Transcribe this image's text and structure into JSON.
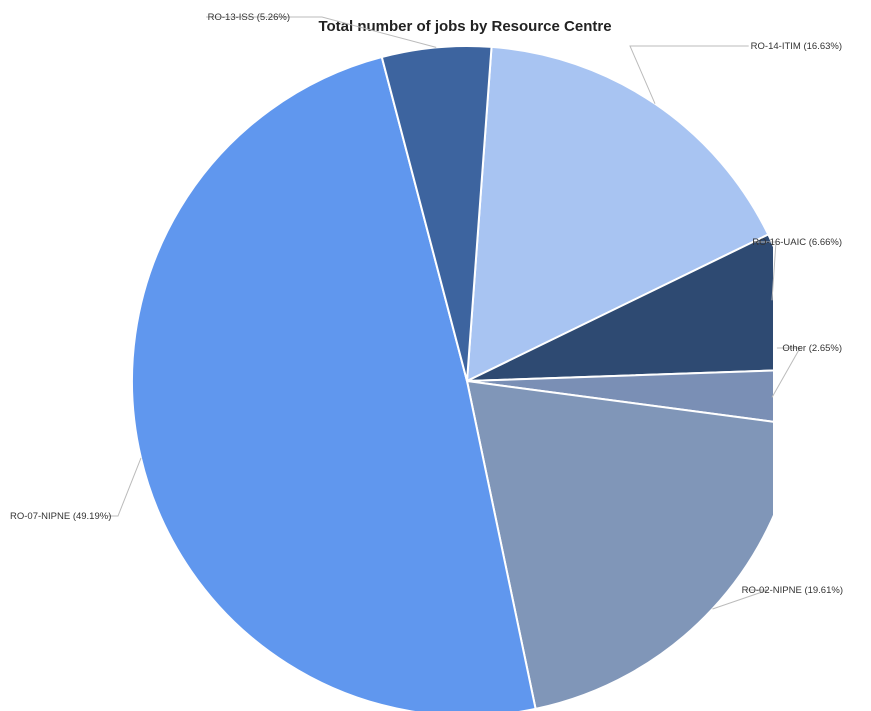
{
  "chart_data": {
    "type": "pie",
    "title": "Total number of jobs  by Resource Centre",
    "slices": [
      {
        "label": "RO-14-ITIM (16.63%)",
        "name": "RO-14-ITIM",
        "percent": 16.63,
        "color": "#A8C4F2"
      },
      {
        "label": "RO-16-UAIC (6.66%)",
        "name": "RO-16-UAIC",
        "percent": 6.66,
        "color": "#2E4A72"
      },
      {
        "label": "Other (2.65%)",
        "name": "Other",
        "percent": 2.65,
        "color": "#7A8FB5"
      },
      {
        "label": "RO-02-NIPNE (19.61%)",
        "name": "RO-02-NIPNE",
        "percent": 19.61,
        "color": "#8096B8"
      },
      {
        "label": "RO-07-NIPNE (49.19%)",
        "name": "RO-07-NIPNE",
        "percent": 49.19,
        "color": "#6097EE"
      },
      {
        "label": "RO-13-ISS (5.26%)",
        "name": "RO-13-ISS",
        "percent": 5.26,
        "color": "#3D649F"
      }
    ],
    "start_angle_deg": 4.2,
    "direction": "clockwise",
    "label_color": "#333333",
    "leader_color": "#BBBBBB",
    "slice_border_color": "#FFFFFF"
  }
}
